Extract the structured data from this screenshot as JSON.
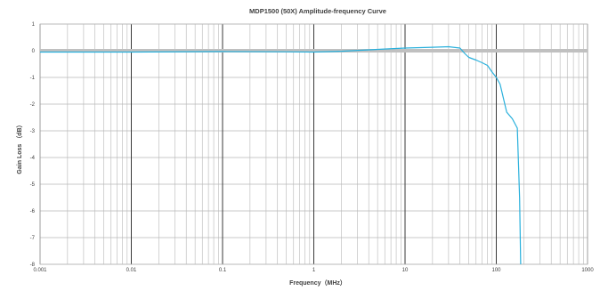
{
  "chart_data": {
    "type": "line",
    "title": "MDP1500 (50X) Amplitude-frequency Curve",
    "xlabel": "Frequency（MHz）",
    "ylabel": "Gain Loss （dB）",
    "x_scale": "log",
    "xlim": [
      0.001,
      1000
    ],
    "ylim": [
      -8,
      1
    ],
    "x_tick_labels": [
      "0.001",
      "0.01",
      "0.1",
      "1",
      "10",
      "100",
      "1000"
    ],
    "y_tick_labels": [
      "1",
      "0",
      "-1",
      "-2",
      "-3",
      "-4",
      "-5",
      "-6",
      "-7",
      "-8"
    ],
    "grid": true,
    "colors": {
      "curve": "#29b0dc",
      "reference": "#c0c0c0",
      "grid_minor": "#b7b7b7",
      "grid_major": "#3a3a3a"
    },
    "series": [
      {
        "role": "reference",
        "x": [
          0.001,
          1000
        ],
        "y": [
          0,
          0
        ]
      },
      {
        "role": "curve",
        "x": [
          0.001,
          0.01,
          0.1,
          0.5,
          1,
          2,
          5,
          10,
          20,
          30,
          40,
          45,
          50,
          60,
          70,
          80,
          90,
          100,
          110,
          130,
          150,
          170,
          180,
          185
        ],
        "y": [
          -0.05,
          -0.05,
          -0.03,
          -0.04,
          -0.05,
          -0.02,
          0.05,
          0.1,
          0.13,
          0.15,
          0.1,
          -0.1,
          -0.25,
          -0.35,
          -0.45,
          -0.55,
          -0.8,
          -1.0,
          -1.25,
          -2.3,
          -2.55,
          -2.9,
          -5.5,
          -8.0
        ]
      }
    ]
  }
}
